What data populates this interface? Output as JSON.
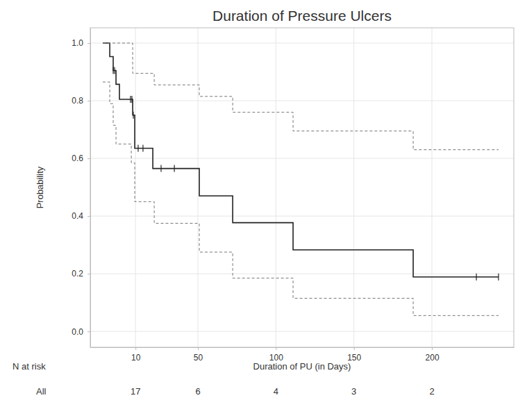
{
  "chart_data": {
    "type": "line",
    "title": "Duration of Pressure Ulcers",
    "x_label": "Duration of PU (in Days)",
    "y_label": "Probability",
    "xlim": [
      -19,
      252.5
    ],
    "ylim": [
      -0.055,
      1.053
    ],
    "xticks": [
      10,
      50,
      100,
      150,
      200
    ],
    "yticks": [
      {
        "value": 0,
        "label": "0.0"
      },
      0.2,
      0.4,
      0.6,
      0.8,
      {
        "value": 1,
        "label": "1.0"
      }
    ],
    "grid": true,
    "series": [
      {
        "type": "step",
        "color": "#222222",
        "line_style": "solid",
        "x": [
          -11,
          -6.5,
          -4.3,
          -2.5,
          -0.3,
          8.2,
          9.5,
          21.1,
          50.9,
          72.3,
          111.0,
          188.0,
          242.7
        ],
        "values": [
          1.0,
          0.953,
          0.905,
          0.857,
          0.805,
          0.75,
          0.635,
          0.565,
          0.47,
          0.377,
          0.283,
          0.189,
          0.189
        ]
      },
      {
        "type": "step",
        "color": "#777777",
        "line_style": "dashed",
        "x": [
          -11,
          8.2,
          22.0,
          50.9,
          72.3,
          111.0,
          188.0,
          242.7
        ],
        "values": [
          1.0,
          0.895,
          0.855,
          0.815,
          0.76,
          0.695,
          0.63,
          0.63
        ]
      },
      {
        "type": "step",
        "color": "#777777",
        "line_style": "dashed",
        "x": [
          -11,
          -6.5,
          -4.3,
          -2.5,
          7.3,
          9.5,
          22.0,
          50.9,
          72.3,
          111.0,
          188.0,
          242.7
        ],
        "values": [
          0.865,
          0.79,
          0.715,
          0.65,
          0.585,
          0.45,
          0.375,
          0.275,
          0.185,
          0.115,
          0.055,
          0.055
        ]
      },
      {
        "type": "scatter",
        "color": "#222222",
        "marker": "|",
        "x": [
          -4.3,
          -3.4,
          6.8,
          7.7,
          8.6,
          11.7,
          14.8,
          26.4,
          34.9,
          228.5,
          242.7
        ],
        "values": [
          0.905,
          0.905,
          0.805,
          0.805,
          0.75,
          0.635,
          0.635,
          0.565,
          0.565,
          0.189,
          0.189
        ]
      }
    ],
    "risk_table": {
      "title": "N at risk",
      "group": "All",
      "x": [
        10,
        50,
        100,
        150,
        200
      ],
      "values": [
        17,
        6,
        4,
        3,
        2
      ]
    }
  }
}
